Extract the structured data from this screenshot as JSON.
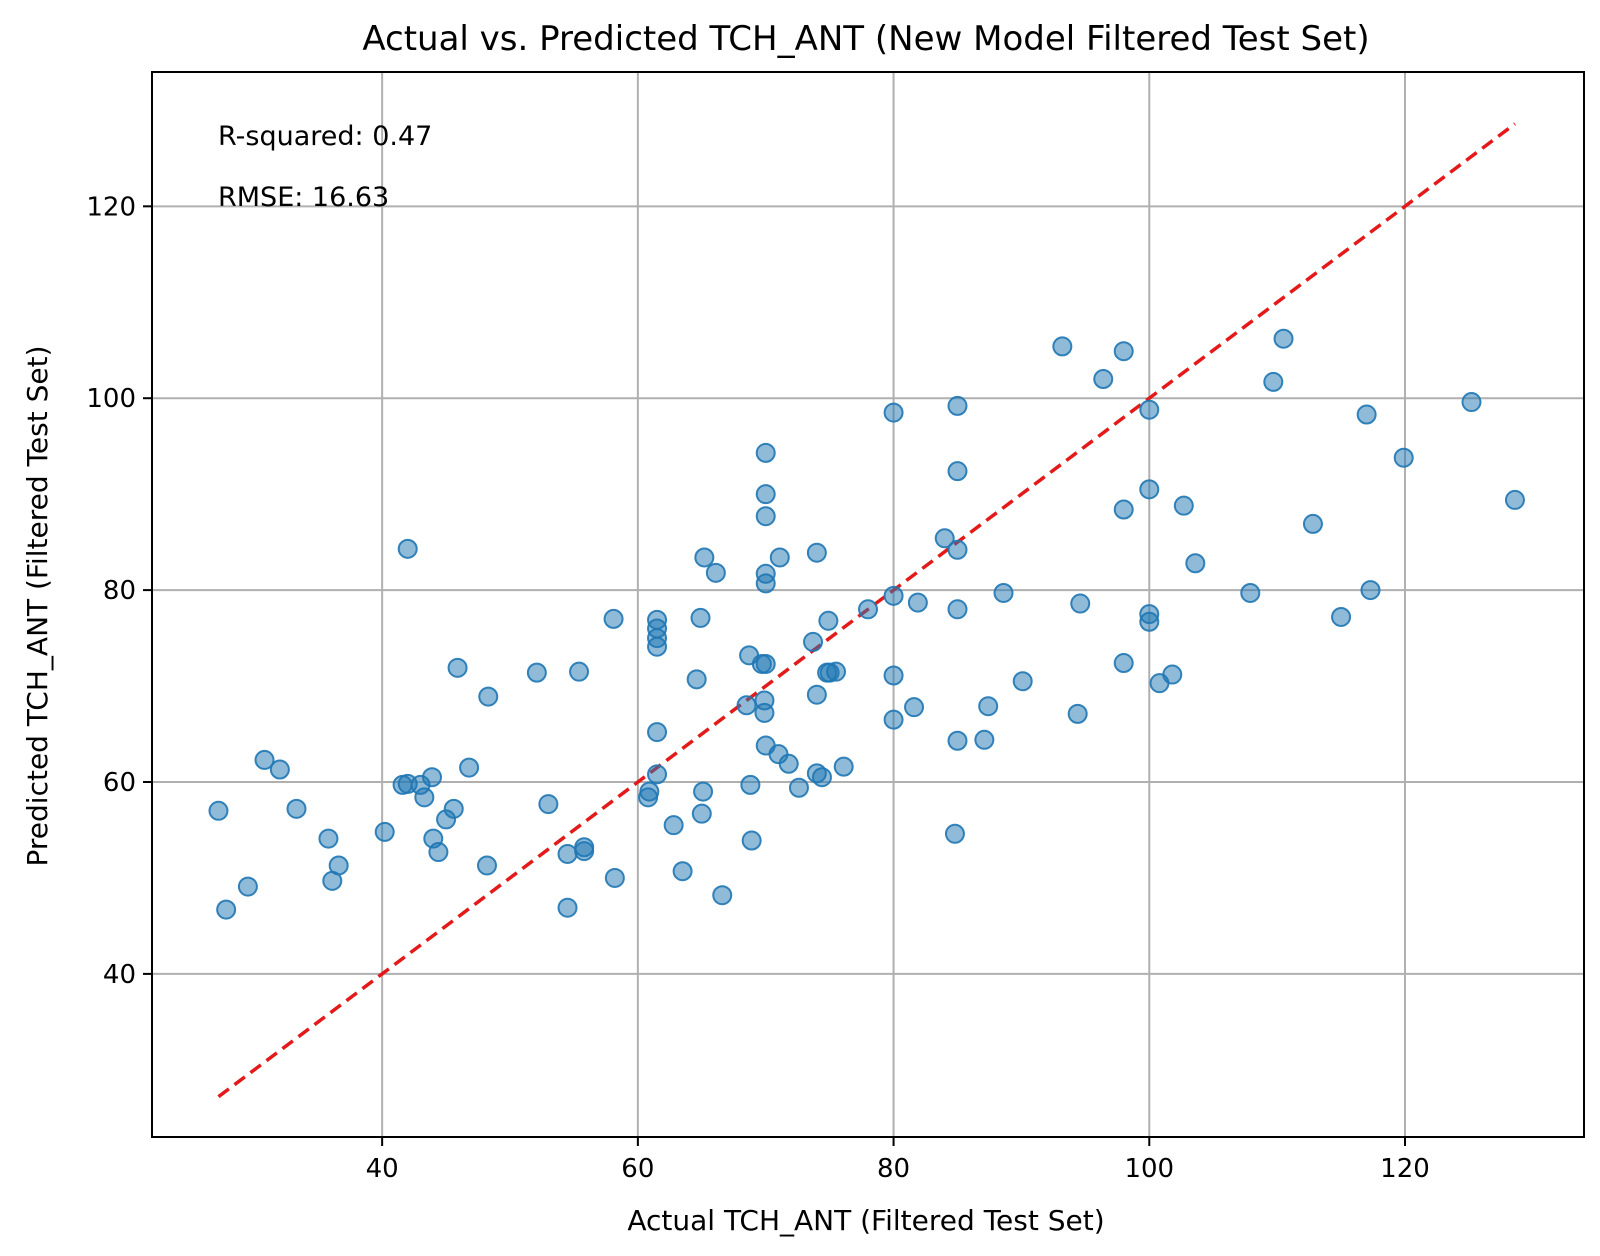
{
  "chart_data": {
    "type": "scatter",
    "title": "Actual vs. Predicted TCH_ANT (New Model Filtered Test Set)",
    "xlabel": "Actual TCH_ANT (Filtered Test Set)",
    "ylabel": "Predicted TCH_ANT (Filtered Test Set)",
    "xlim": [
      22,
      134
    ],
    "ylim": [
      23,
      134
    ],
    "xticks": [
      40,
      60,
      80,
      100,
      120
    ],
    "yticks": [
      40,
      60,
      80,
      100,
      120
    ],
    "grid": true,
    "annotations": [
      "R-squared: 0.47",
      "RMSE: 16.63"
    ],
    "reference_line": {
      "style": "dashed",
      "color": "#e41a1a",
      "from": [
        27.2,
        27.2
      ],
      "to": [
        128.6,
        128.6
      ]
    },
    "point_color": "#1f77b4",
    "points": [
      [
        27.2,
        57.0
      ],
      [
        27.8,
        46.7
      ],
      [
        29.5,
        49.1
      ],
      [
        30.8,
        62.3
      ],
      [
        32.0,
        61.3
      ],
      [
        33.3,
        57.2
      ],
      [
        35.8,
        54.1
      ],
      [
        36.1,
        49.7
      ],
      [
        36.6,
        51.3
      ],
      [
        40.2,
        54.8
      ],
      [
        41.6,
        59.7
      ],
      [
        42.0,
        59.8
      ],
      [
        42.0,
        84.3
      ],
      [
        43.0,
        59.7
      ],
      [
        43.3,
        58.4
      ],
      [
        43.9,
        60.5
      ],
      [
        44.0,
        54.1
      ],
      [
        44.4,
        52.7
      ],
      [
        45.0,
        56.1
      ],
      [
        45.6,
        57.2
      ],
      [
        45.9,
        71.9
      ],
      [
        46.8,
        61.5
      ],
      [
        48.2,
        51.3
      ],
      [
        48.3,
        68.9
      ],
      [
        52.1,
        71.4
      ],
      [
        53.0,
        57.7
      ],
      [
        54.5,
        52.5
      ],
      [
        54.5,
        46.9
      ],
      [
        55.4,
        71.5
      ],
      [
        55.8,
        52.8
      ],
      [
        55.8,
        53.2
      ],
      [
        58.1,
        77.0
      ],
      [
        58.2,
        50.0
      ],
      [
        60.8,
        58.4
      ],
      [
        60.9,
        59.0
      ],
      [
        61.5,
        60.8
      ],
      [
        61.5,
        65.2
      ],
      [
        61.5,
        74.1
      ],
      [
        61.5,
        75.0
      ],
      [
        61.5,
        76.0
      ],
      [
        61.5,
        76.9
      ],
      [
        62.8,
        55.5
      ],
      [
        63.5,
        50.7
      ],
      [
        64.6,
        70.7
      ],
      [
        64.9,
        77.1
      ],
      [
        65.0,
        56.7
      ],
      [
        65.1,
        59.0
      ],
      [
        65.2,
        83.4
      ],
      [
        66.1,
        81.8
      ],
      [
        66.6,
        48.2
      ],
      [
        68.5,
        68.0
      ],
      [
        68.7,
        73.2
      ],
      [
        68.8,
        59.7
      ],
      [
        68.9,
        53.9
      ],
      [
        69.7,
        72.3
      ],
      [
        69.9,
        67.2
      ],
      [
        69.9,
        68.5
      ],
      [
        70.0,
        63.8
      ],
      [
        70.0,
        72.3
      ],
      [
        70.0,
        80.7
      ],
      [
        70.0,
        81.7
      ],
      [
        70.0,
        87.7
      ],
      [
        70.0,
        90.0
      ],
      [
        70.0,
        94.3
      ],
      [
        71.0,
        62.9
      ],
      [
        71.1,
        83.4
      ],
      [
        71.8,
        61.9
      ],
      [
        72.6,
        59.4
      ],
      [
        73.7,
        74.6
      ],
      [
        74.0,
        60.9
      ],
      [
        74.0,
        69.1
      ],
      [
        74.0,
        83.9
      ],
      [
        74.4,
        60.5
      ],
      [
        74.8,
        71.4
      ],
      [
        74.9,
        76.8
      ],
      [
        75.0,
        71.4
      ],
      [
        75.5,
        71.5
      ],
      [
        76.1,
        61.6
      ],
      [
        78.0,
        78.0
      ],
      [
        80.0,
        66.5
      ],
      [
        80.0,
        71.1
      ],
      [
        80.0,
        79.4
      ],
      [
        80.0,
        98.5
      ],
      [
        81.6,
        67.8
      ],
      [
        81.9,
        78.7
      ],
      [
        84.0,
        85.4
      ],
      [
        84.8,
        54.6
      ],
      [
        85.0,
        64.3
      ],
      [
        85.0,
        78.0
      ],
      [
        85.0,
        84.2
      ],
      [
        85.0,
        92.4
      ],
      [
        85.0,
        99.2
      ],
      [
        87.1,
        64.4
      ],
      [
        87.4,
        67.9
      ],
      [
        88.6,
        79.7
      ],
      [
        90.1,
        70.5
      ],
      [
        93.2,
        105.4
      ],
      [
        94.4,
        67.1
      ],
      [
        94.6,
        78.6
      ],
      [
        96.4,
        102.0
      ],
      [
        98.0,
        72.4
      ],
      [
        98.0,
        88.4
      ],
      [
        98.0,
        104.9
      ],
      [
        100.0,
        77.5
      ],
      [
        100.0,
        76.7
      ],
      [
        100.0,
        90.5
      ],
      [
        100.0,
        98.8
      ],
      [
        100.8,
        70.3
      ],
      [
        101.8,
        71.2
      ],
      [
        102.7,
        88.8
      ],
      [
        103.6,
        82.8
      ],
      [
        107.9,
        79.7
      ],
      [
        109.7,
        101.7
      ],
      [
        110.5,
        106.2
      ],
      [
        112.8,
        86.9
      ],
      [
        115.0,
        77.2
      ],
      [
        117.0,
        98.3
      ],
      [
        117.3,
        80.0
      ],
      [
        119.9,
        93.8
      ],
      [
        125.2,
        99.6
      ],
      [
        128.6,
        89.4
      ]
    ]
  }
}
